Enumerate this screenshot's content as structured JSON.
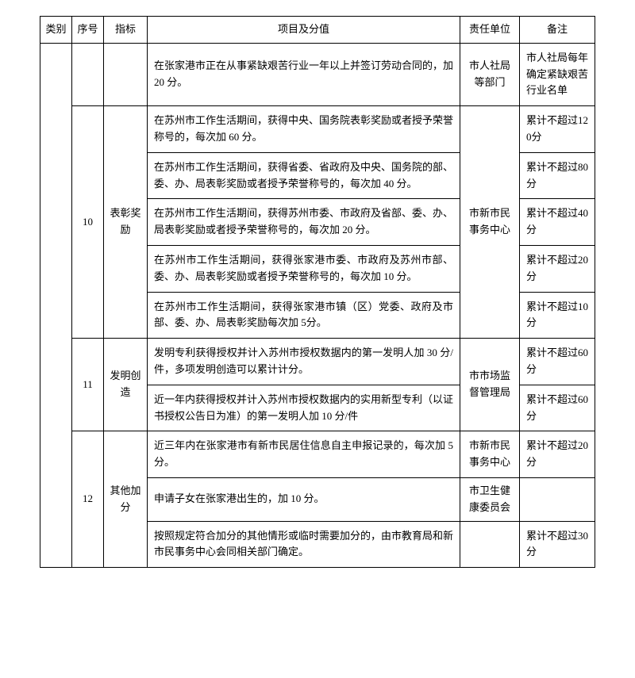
{
  "headers": {
    "category": "类别",
    "num": "序号",
    "indicator": "指标",
    "item": "项目及分值",
    "dept": "责任单位",
    "note": "备注"
  },
  "row_top": {
    "item": "在张家港市正在从事紧缺艰苦行业一年以上并签订劳动合同的，加 20 分。",
    "dept": "市人社局等部门",
    "note": "市人社局每年确定紧缺艰苦行业名单"
  },
  "group10": {
    "num": "10",
    "indicator": "表彰奖励",
    "dept": "市新市民事务中心",
    "rows": [
      {
        "item": "在苏州市工作生活期间，获得中央、国务院表彰奖励或者授予荣誉称号的，每次加 60 分。",
        "note": "累计不超过120分"
      },
      {
        "item": "在苏州市工作生活期间，获得省委、省政府及中央、国务院的部、委、办、局表彰奖励或者授予荣誉称号的，每次加 40 分。",
        "note": "累计不超过80分"
      },
      {
        "item": "在苏州市工作生活期间，获得苏州市委、市政府及省部、委、办、局表彰奖励或者授予荣誉称号的，每次加 20 分。",
        "note": "累计不超过40分"
      },
      {
        "item": "在苏州市工作生活期间，获得张家港市委、市政府及苏州市部、委、办、局表彰奖励或者授予荣誉称号的，每次加 10 分。",
        "note": "累计不超过20分"
      },
      {
        "item": "在苏州市工作生活期间，获得张家港市镇（区）党委、政府及市部、委、办、局表彰奖励每次加 5分。",
        "note": "累计不超过10分"
      }
    ]
  },
  "group11": {
    "num": "11",
    "indicator": "发明创造",
    "dept": "市市场监督管理局",
    "rows": [
      {
        "item": "发明专利获得授权并计入苏州市授权数据内的第一发明人加 30 分/件，多项发明创造可以累计计分。",
        "note": "累计不超过60分"
      },
      {
        "item": "近一年内获得授权并计入苏州市授权数据内的实用新型专利（以证书授权公告日为准）的第一发明人加 10 分/件",
        "note": "累计不超过60分"
      }
    ]
  },
  "group12": {
    "num": "12",
    "indicator": "其他加分",
    "rows": [
      {
        "item": "近三年内在张家港市有新市民居住信息自主申报记录的，每次加 5 分。",
        "dept": "市新市民事务中心",
        "note": "累计不超过20分"
      },
      {
        "item": "申请子女在张家港出生的，加 10 分。",
        "dept": "市卫生健康委员会",
        "note": ""
      },
      {
        "item": "按照规定符合加分的其他情形或临时需要加分的，由市教育局和新市民事务中心会同相关部门确定。",
        "dept": "",
        "note": "累计不超过30分"
      }
    ]
  }
}
